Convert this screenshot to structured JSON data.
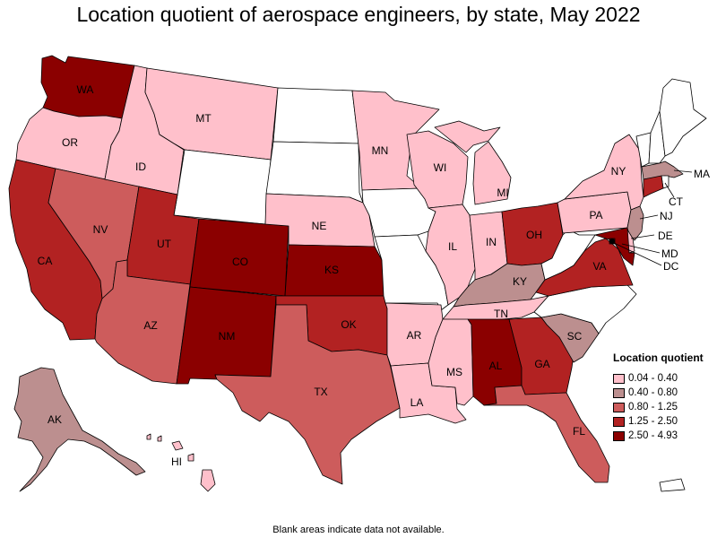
{
  "title": "Location quotient of aerospace engineers, by state, May 2022",
  "footnote": "Blank areas indicate data not available.",
  "legend": {
    "title": "Location quotient",
    "items": [
      {
        "label": "0.04 - 0.40",
        "color": "#ffc0cb"
      },
      {
        "label": "0.40 - 0.80",
        "color": "#bc8f8f"
      },
      {
        "label": "0.80 - 1.25",
        "color": "#cd5c5c"
      },
      {
        "label": "1.25 - 2.50",
        "color": "#b22222"
      },
      {
        "label": "2.50 - 4.93",
        "color": "#8b0000"
      }
    ]
  },
  "colors": {
    "no_data": "#ffffff",
    "border": "#000000"
  },
  "states": {
    "WA": {
      "label": "WA",
      "bin": 4
    },
    "OR": {
      "label": "OR",
      "bin": 0
    },
    "CA": {
      "label": "CA",
      "bin": 3
    },
    "NV": {
      "label": "NV",
      "bin": 2
    },
    "ID": {
      "label": "ID",
      "bin": 0
    },
    "MT": {
      "label": "MT",
      "bin": 0
    },
    "WY": {
      "label": "",
      "bin": -1
    },
    "UT": {
      "label": "UT",
      "bin": 3
    },
    "AZ": {
      "label": "AZ",
      "bin": 2
    },
    "CO": {
      "label": "CO",
      "bin": 4
    },
    "NM": {
      "label": "NM",
      "bin": 4
    },
    "ND": {
      "label": "",
      "bin": -1
    },
    "SD": {
      "label": "",
      "bin": -1
    },
    "NE": {
      "label": "NE",
      "bin": 0
    },
    "KS": {
      "label": "KS",
      "bin": 4
    },
    "OK": {
      "label": "OK",
      "bin": 3
    },
    "TX": {
      "label": "TX",
      "bin": 2
    },
    "MN": {
      "label": "MN",
      "bin": 0
    },
    "IA": {
      "label": "",
      "bin": -1
    },
    "MO": {
      "label": "",
      "bin": -1
    },
    "AR": {
      "label": "AR",
      "bin": 0
    },
    "LA": {
      "label": "LA",
      "bin": 0
    },
    "WI": {
      "label": "WI",
      "bin": 0
    },
    "IL": {
      "label": "IL",
      "bin": 0
    },
    "MI": {
      "label": "MI",
      "bin": 0
    },
    "IN": {
      "label": "IN",
      "bin": 0
    },
    "OH": {
      "label": "OH",
      "bin": 3
    },
    "KY": {
      "label": "KY",
      "bin": 1
    },
    "TN": {
      "label": "TN",
      "bin": 0
    },
    "MS": {
      "label": "MS",
      "bin": 0
    },
    "AL": {
      "label": "AL",
      "bin": 4
    },
    "GA": {
      "label": "GA",
      "bin": 3
    },
    "FL": {
      "label": "FL",
      "bin": 2
    },
    "SC": {
      "label": "SC",
      "bin": 1
    },
    "NC": {
      "label": "",
      "bin": -1
    },
    "VA": {
      "label": "VA",
      "bin": 3
    },
    "WV": {
      "label": "",
      "bin": -1
    },
    "PA": {
      "label": "PA",
      "bin": 0
    },
    "NY": {
      "label": "NY",
      "bin": 0
    },
    "VT": {
      "label": "",
      "bin": -1
    },
    "NH": {
      "label": "",
      "bin": -1
    },
    "ME": {
      "label": "",
      "bin": -1
    },
    "MA": {
      "label": "MA",
      "bin": 1
    },
    "RI": {
      "label": "",
      "bin": -1
    },
    "CT": {
      "label": "CT",
      "bin": 3
    },
    "NJ": {
      "label": "NJ",
      "bin": 1
    },
    "DE": {
      "label": "DE",
      "bin": 0
    },
    "MD": {
      "label": "MD",
      "bin": 4
    },
    "DC": {
      "label": "DC",
      "bin": 4
    },
    "AK": {
      "label": "AK",
      "bin": 1
    },
    "HI": {
      "label": "HI",
      "bin": 0
    },
    "PR": {
      "label": "",
      "bin": -1
    }
  }
}
